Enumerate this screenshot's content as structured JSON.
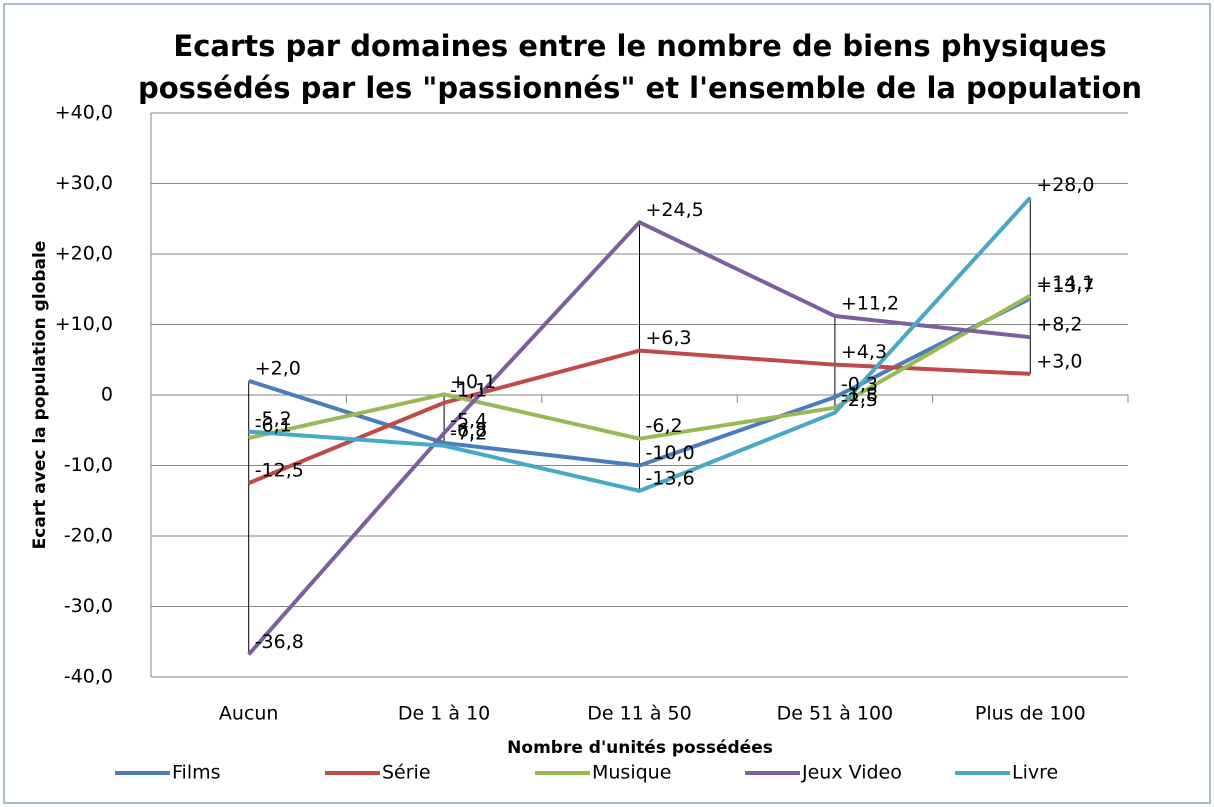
{
  "chart_data": {
    "type": "line",
    "title": [
      "Ecarts par domaines entre le nombre de biens physiques",
      "possédés par les \"passionnés\" et l'ensemble de la population"
    ],
    "y_label": "Ecart avec la population globale",
    "x_label": "Nombre d'unités possédées",
    "categories": [
      "Aucun",
      "De 1 à 10",
      "De 11 à 50",
      "De 51 à 100",
      "Plus de 100"
    ],
    "ylim": [
      -40,
      40
    ],
    "yticks": [
      {
        "value": -40,
        "label": "-40,0"
      },
      {
        "value": -30,
        "label": "-30,0"
      },
      {
        "value": -20,
        "label": "-20,0"
      },
      {
        "value": -10,
        "label": "-10,0"
      },
      0,
      {
        "value": 10,
        "label": "+10,0"
      },
      {
        "value": 20,
        "label": "+20,0"
      },
      {
        "value": 30,
        "label": "+30,0"
      },
      {
        "value": 40,
        "label": "+40,0"
      }
    ],
    "grid": true,
    "legend": "bottom",
    "series": [
      {
        "name": "Films",
        "color": "#4a7ebb",
        "values": [
          2.0,
          -6.8,
          -10.0,
          -0.3,
          13.7
        ],
        "value_labels": [
          "+2,0",
          "-6,8",
          "-10,0",
          "-0,3",
          "+13,7"
        ]
      },
      {
        "name": "Série",
        "color": "#be4b48",
        "values": [
          -12.5,
          -1.1,
          6.3,
          4.3,
          3.0
        ],
        "value_labels": [
          "-12,5",
          "-1,1",
          "+6,3",
          "+4,3",
          "+3,0"
        ]
      },
      {
        "name": "Musique",
        "color": "#98b954",
        "values": [
          -6.1,
          0.1,
          -6.2,
          -1.8,
          14.1
        ],
        "value_labels": [
          "-6,1",
          "+0,1",
          "-6,2",
          "-1,8",
          "+14,1"
        ]
      },
      {
        "name": "Jeux Video",
        "color": "#7d5fa0",
        "values": [
          -36.8,
          -5.4,
          24.5,
          11.2,
          8.2
        ],
        "value_labels": [
          "-36,8",
          "-5,4",
          "+24,5",
          "+11,2",
          "+8,2"
        ]
      },
      {
        "name": "Livre",
        "color": "#46aac5",
        "values": [
          -5.2,
          -7.2,
          -13.6,
          -2.5,
          28.0
        ],
        "value_labels": [
          "-5,2",
          "-7,2",
          "-13,6",
          "-2,5",
          "+28,0"
        ]
      }
    ]
  }
}
